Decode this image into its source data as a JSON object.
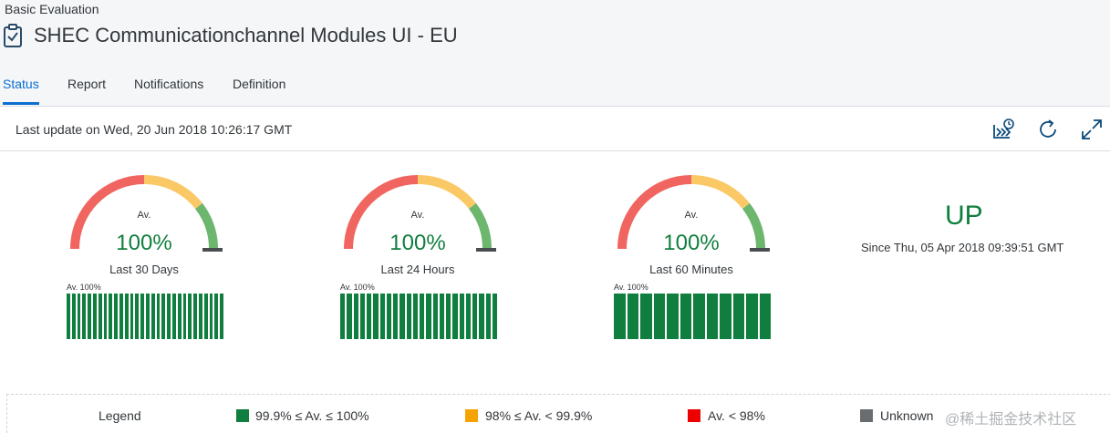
{
  "header": {
    "breadcrumb": "Basic Evaluation",
    "title": "SHEC Communicationchannel Modules UI - EU"
  },
  "tabs": [
    {
      "label": "Status",
      "active": true
    },
    {
      "label": "Report",
      "active": false
    },
    {
      "label": "Notifications",
      "active": false
    },
    {
      "label": "Definition",
      "active": false
    }
  ],
  "toolbar": {
    "last_update": "Last update on Wed, 20 Jun 2018 10:26:17 GMT",
    "icons": [
      "history-icon",
      "refresh-icon",
      "fullscreen-icon"
    ]
  },
  "gauges": [
    {
      "av_label": "Av.",
      "value": "100%",
      "period": "Last 30 Days",
      "bar_label": "Av. 100%",
      "bar_count": 30
    },
    {
      "av_label": "Av.",
      "value": "100%",
      "period": "Last 24 Hours",
      "bar_label": "Av. 100%",
      "bar_count": 24
    },
    {
      "av_label": "Av.",
      "value": "100%",
      "period": "Last 60 Minutes",
      "bar_label": "Av. 100%",
      "bar_count": 12
    }
  ],
  "status": {
    "state": "UP",
    "since": "Since Thu, 05 Apr 2018 09:39:51 GMT"
  },
  "legend": {
    "title": "Legend",
    "items": [
      {
        "label": "99.9% ≤ Av. ≤ 100%",
        "color": "#107e3e"
      },
      {
        "label": "98% ≤ Av. < 99.9%",
        "color": "#f5a300"
      },
      {
        "label": "Av. < 98%",
        "color": "#ee0000"
      },
      {
        "label": "Unknown",
        "color": "#6a6d70"
      }
    ]
  },
  "watermark": "@稀土掘金技术社区",
  "colors": {
    "accent": "#0a6ed1",
    "good": "#107e3e",
    "arc_red": "#f0655f",
    "arc_yellow": "#fbc866",
    "arc_green": "#6cb66d"
  }
}
